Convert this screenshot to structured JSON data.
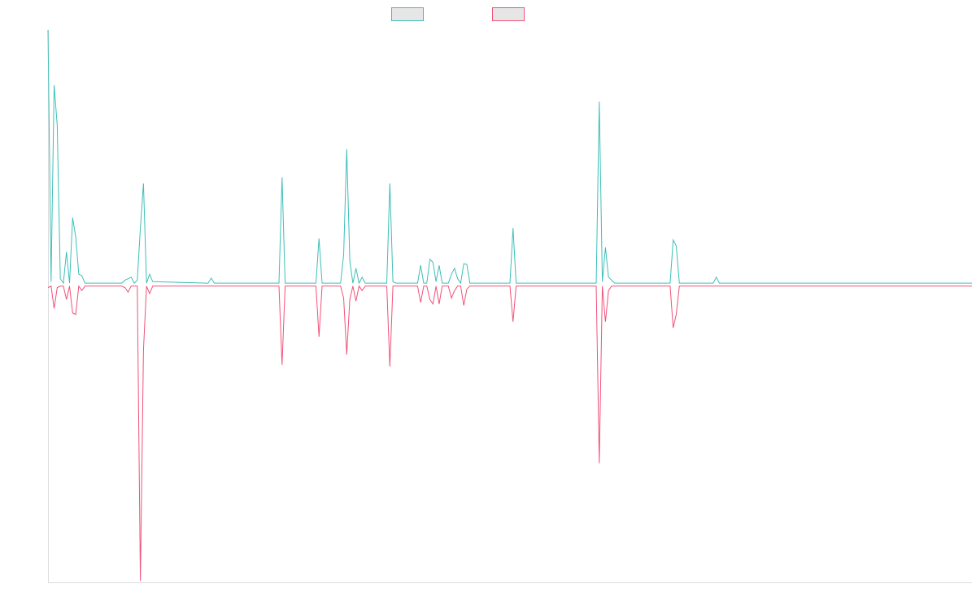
{
  "colors": {
    "series_a": "#3dbfb8",
    "series_b": "#f0527a",
    "axis": "#dddddd",
    "legend_fill": "#e6e6e6"
  },
  "legend": {
    "placement": "top-center",
    "items": [
      {
        "name": "",
        "color": "#3dbfb8"
      },
      {
        "name": "",
        "color": "#f0527a"
      }
    ]
  },
  "chart_data": {
    "type": "line",
    "title": "",
    "xlabel": "",
    "ylabel": "",
    "grid": false,
    "xlim": [
      0,
      300
    ],
    "ylim": [
      -1.0,
      0.855
    ],
    "series": [
      {
        "values": [
          [
            0,
            0.855
          ],
          [
            1,
            0.01
          ],
          [
            2,
            0.67
          ],
          [
            3,
            0.535
          ],
          [
            4,
            0.02
          ],
          [
            5,
            0.005
          ],
          [
            6,
            0.11
          ],
          [
            7,
            0.005
          ],
          [
            8,
            0.225
          ],
          [
            9,
            0.16
          ],
          [
            10,
            0.035
          ],
          [
            11,
            0.03
          ],
          [
            12,
            0.005
          ],
          [
            24,
            0.005
          ],
          [
            25,
            0.015
          ],
          [
            26,
            0.02
          ],
          [
            27,
            0.025
          ],
          [
            28,
            0.005
          ],
          [
            29,
            0.015
          ],
          [
            30,
            0.19
          ],
          [
            31,
            0.34
          ],
          [
            32,
            0.005
          ],
          [
            33,
            0.035
          ],
          [
            34,
            0.01
          ],
          [
            52,
            0.005
          ],
          [
            53,
            0.022
          ],
          [
            54,
            0.005
          ],
          [
            75,
            0.005
          ],
          [
            76,
            0.36
          ],
          [
            77,
            0.005
          ],
          [
            87,
            0.005
          ],
          [
            88,
            0.155
          ],
          [
            89,
            0.005
          ],
          [
            90,
            0.005
          ],
          [
            92,
            0.005
          ],
          [
            95,
            0.005
          ],
          [
            96,
            0.1
          ],
          [
            97,
            0.455
          ],
          [
            98,
            0.08
          ],
          [
            99,
            0.005
          ],
          [
            100,
            0.055
          ],
          [
            101,
            0.005
          ],
          [
            102,
            0.025
          ],
          [
            103,
            0.005
          ],
          [
            110,
            0.005
          ],
          [
            111,
            0.34
          ],
          [
            112,
            0.01
          ],
          [
            113,
            0.005
          ],
          [
            120,
            0.005
          ],
          [
            121,
            0.065
          ],
          [
            122,
            0.005
          ],
          [
            123,
            0.005
          ],
          [
            124,
            0.085
          ],
          [
            125,
            0.075
          ],
          [
            126,
            0.01
          ],
          [
            127,
            0.065
          ],
          [
            128,
            0.005
          ],
          [
            129,
            0.005
          ],
          [
            130,
            0.005
          ],
          [
            131,
            0.035
          ],
          [
            132,
            0.055
          ],
          [
            133,
            0.02
          ],
          [
            134,
            0.005
          ],
          [
            135,
            0.07
          ],
          [
            136,
            0.068
          ],
          [
            137,
            0.005
          ],
          [
            150,
            0.005
          ],
          [
            151,
            0.19
          ],
          [
            152,
            0.005
          ],
          [
            178,
            0.005
          ],
          [
            179,
            0.615
          ],
          [
            180,
            0.01
          ],
          [
            181,
            0.125
          ],
          [
            182,
            0.025
          ],
          [
            183,
            0.015
          ],
          [
            184,
            0.005
          ],
          [
            202,
            0.005
          ],
          [
            203,
            0.15
          ],
          [
            204,
            0.13
          ],
          [
            205,
            0.005
          ],
          [
            216,
            0.005
          ],
          [
            217,
            0.025
          ],
          [
            218,
            0.005
          ],
          [
            300,
            0.005
          ]
        ]
      },
      {
        "values": [
          [
            0,
            -0.01
          ],
          [
            1,
            -0.005
          ],
          [
            2,
            -0.08
          ],
          [
            3,
            -0.01
          ],
          [
            4,
            -0.005
          ],
          [
            5,
            -0.005
          ],
          [
            6,
            -0.05
          ],
          [
            7,
            -0.005
          ],
          [
            8,
            -0.095
          ],
          [
            9,
            -0.1
          ],
          [
            10,
            -0.005
          ],
          [
            11,
            -0.02
          ],
          [
            12,
            -0.005
          ],
          [
            24,
            -0.005
          ],
          [
            25,
            -0.01
          ],
          [
            26,
            -0.025
          ],
          [
            27,
            -0.005
          ],
          [
            28,
            -0.005
          ],
          [
            29,
            -0.005
          ],
          [
            30,
            -0.995
          ],
          [
            31,
            -0.22
          ],
          [
            32,
            -0.005
          ],
          [
            33,
            -0.03
          ],
          [
            34,
            -0.005
          ],
          [
            52,
            -0.005
          ],
          [
            53,
            -0.005
          ],
          [
            54,
            -0.005
          ],
          [
            75,
            -0.005
          ],
          [
            76,
            -0.27
          ],
          [
            77,
            -0.005
          ],
          [
            87,
            -0.005
          ],
          [
            88,
            -0.175
          ],
          [
            89,
            -0.005
          ],
          [
            90,
            -0.005
          ],
          [
            92,
            -0.005
          ],
          [
            95,
            -0.005
          ],
          [
            96,
            -0.045
          ],
          [
            97,
            -0.235
          ],
          [
            98,
            -0.05
          ],
          [
            99,
            -0.005
          ],
          [
            100,
            -0.055
          ],
          [
            101,
            -0.005
          ],
          [
            102,
            -0.02
          ],
          [
            103,
            -0.005
          ],
          [
            110,
            -0.005
          ],
          [
            111,
            -0.275
          ],
          [
            112,
            -0.005
          ],
          [
            113,
            -0.005
          ],
          [
            120,
            -0.005
          ],
          [
            121,
            -0.06
          ],
          [
            122,
            -0.005
          ],
          [
            123,
            -0.005
          ],
          [
            124,
            -0.05
          ],
          [
            125,
            -0.065
          ],
          [
            126,
            -0.005
          ],
          [
            127,
            -0.065
          ],
          [
            128,
            -0.005
          ],
          [
            129,
            -0.005
          ],
          [
            130,
            -0.005
          ],
          [
            131,
            -0.045
          ],
          [
            132,
            -0.02
          ],
          [
            133,
            -0.005
          ],
          [
            134,
            -0.005
          ],
          [
            135,
            -0.07
          ],
          [
            136,
            -0.015
          ],
          [
            137,
            -0.005
          ],
          [
            150,
            -0.005
          ],
          [
            151,
            -0.125
          ],
          [
            152,
            -0.005
          ],
          [
            178,
            -0.005
          ],
          [
            179,
            -0.6
          ],
          [
            180,
            -0.005
          ],
          [
            181,
            -0.125
          ],
          [
            182,
            -0.02
          ],
          [
            183,
            -0.005
          ],
          [
            184,
            -0.005
          ],
          [
            202,
            -0.005
          ],
          [
            203,
            -0.145
          ],
          [
            204,
            -0.1
          ],
          [
            205,
            -0.005
          ],
          [
            216,
            -0.005
          ],
          [
            217,
            -0.005
          ],
          [
            218,
            -0.005
          ],
          [
            300,
            -0.005
          ]
        ]
      }
    ]
  }
}
